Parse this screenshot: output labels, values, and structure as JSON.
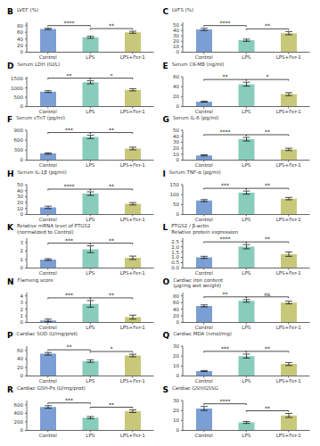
{
  "chart_data": [
    {
      "type": "bar",
      "title": "B",
      "y_label": "LVEF (%)",
      "categories": [
        "Control",
        "LPS",
        "LPS+Fer-1"
      ],
      "values": [
        70,
        45,
        60
      ],
      "errors": [
        2,
        3,
        3
      ],
      "colors": [
        "#7b9fd4",
        "#88ccbb",
        "#c8c87a"
      ],
      "ylim": [
        0,
        90
      ],
      "yticks": [
        0,
        20,
        40,
        60,
        80
      ],
      "annotations": [
        {
          "from": "Control",
          "to": "LPS",
          "text": "****"
        },
        {
          "from": "LPS",
          "to": "LPS+Fer-1",
          "text": "**"
        }
      ]
    },
    {
      "type": "bar",
      "title": "C",
      "y_label": "LVFS (%)",
      "categories": [
        "Control",
        "LPS",
        "LPS+Fer-1"
      ],
      "values": [
        42,
        22,
        35
      ],
      "errors": [
        2,
        2,
        3
      ],
      "colors": [
        "#7b9fd4",
        "#88ccbb",
        "#c8c87a"
      ],
      "ylim": [
        0,
        55
      ],
      "yticks": [
        0,
        10,
        20,
        30,
        40,
        50
      ],
      "annotations": [
        {
          "from": "Control",
          "to": "LPS",
          "text": "****"
        },
        {
          "from": "LPS",
          "to": "LPS+Fer-1",
          "text": "**"
        }
      ]
    },
    {
      "type": "bar",
      "title": "D",
      "y_label": "Serum LDH (IU/L)",
      "categories": [
        "Control",
        "LPS",
        "LPS+Fer-1"
      ],
      "values": [
        800,
        1300,
        900
      ],
      "errors": [
        50,
        80,
        60
      ],
      "colors": [
        "#7b9fd4",
        "#88ccbb",
        "#c8c87a"
      ],
      "ylim": [
        0,
        1600
      ],
      "yticks": [
        0,
        500,
        1000,
        1500
      ],
      "annotations": [
        {
          "from": "Control",
          "to": "LPS",
          "text": "**"
        },
        {
          "from": "LPS",
          "to": "LPS+Fer-1",
          "text": "*"
        }
      ]
    },
    {
      "type": "bar",
      "title": "E",
      "y_label": "Serum CK-MB (ng/ml)",
      "categories": [
        "Control",
        "LPS",
        "LPS+Fer-1"
      ],
      "values": [
        10,
        45,
        25
      ],
      "errors": [
        1,
        4,
        3
      ],
      "colors": [
        "#7b9fd4",
        "#88ccbb",
        "#c8c87a"
      ],
      "ylim": [
        0,
        60
      ],
      "yticks": [
        0,
        20,
        40,
        60
      ],
      "annotations": [
        {
          "from": "Control",
          "to": "LPS",
          "text": "**"
        },
        {
          "from": "LPS",
          "to": "LPS+Fer-1",
          "text": "*"
        }
      ]
    },
    {
      "type": "bar",
      "title": "F",
      "y_label": "Serum cTnT (pg/ml)",
      "categories": [
        "Control",
        "LPS",
        "LPS+Fer-1"
      ],
      "values": [
        200,
        700,
        350
      ],
      "errors": [
        20,
        50,
        40
      ],
      "colors": [
        "#7b9fd4",
        "#88ccbb",
        "#c8c87a"
      ],
      "ylim": [
        0,
        900
      ],
      "yticks": [
        0,
        300,
        600,
        900
      ],
      "annotations": [
        {
          "from": "Control",
          "to": "LPS",
          "text": "***"
        },
        {
          "from": "LPS",
          "to": "LPS+Fer-1",
          "text": "**"
        }
      ]
    },
    {
      "type": "bar",
      "title": "G",
      "y_label": "Serum IL-6 (pg/ml)",
      "categories": [
        "Control",
        "LPS",
        "LPS+Fer-1"
      ],
      "values": [
        8,
        35,
        18
      ],
      "errors": [
        1,
        3,
        2
      ],
      "colors": [
        "#7b9fd4",
        "#88ccbb",
        "#c8c87a"
      ],
      "ylim": [
        0,
        50
      ],
      "yticks": [
        0,
        10,
        20,
        30,
        40,
        50
      ],
      "annotations": [
        {
          "from": "Control",
          "to": "LPS",
          "text": "****"
        },
        {
          "from": "LPS",
          "to": "LPS+Fer-1",
          "text": "**"
        }
      ]
    },
    {
      "type": "bar",
      "title": "H",
      "y_label": "Serum IL-1β (pg/ml)",
      "categories": [
        "Control",
        "LPS",
        "LPS+Fer-1"
      ],
      "values": [
        12,
        35,
        18
      ],
      "errors": [
        2,
        3,
        2
      ],
      "colors": [
        "#7b9fd4",
        "#88ccbb",
        "#c8c87a"
      ],
      "ylim": [
        0,
        50
      ],
      "yticks": [
        0,
        10,
        20,
        30,
        40,
        50
      ],
      "annotations": [
        {
          "from": "Control",
          "to": "LPS",
          "text": "****"
        },
        {
          "from": "LPS",
          "to": "LPS+Fer-1",
          "text": "**"
        }
      ]
    },
    {
      "type": "bar",
      "title": "I",
      "y_label": "Serum TNF-α (pg/ml)",
      "categories": [
        "Control",
        "LPS",
        "LPS+Fer-1"
      ],
      "values": [
        70,
        110,
        80
      ],
      "errors": [
        5,
        8,
        6
      ],
      "colors": [
        "#7b9fd4",
        "#88ccbb",
        "#c8c87a"
      ],
      "ylim": [
        0,
        150
      ],
      "yticks": [
        0,
        50,
        100,
        150
      ],
      "annotations": [
        {
          "from": "Control",
          "to": "LPS",
          "text": "***"
        },
        {
          "from": "LPS",
          "to": "LPS+Fer-1",
          "text": "**"
        }
      ]
    },
    {
      "type": "bar",
      "title": "K",
      "y_label": "Relative mRNA level of PTGS2\n(normalized to Control)",
      "categories": [
        "Control",
        "LPS",
        "LPS+Fer-1"
      ],
      "values": [
        1.0,
        2.2,
        1.2
      ],
      "errors": [
        0.1,
        0.4,
        0.2
      ],
      "colors": [
        "#7b9fd4",
        "#88ccbb",
        "#c8c87a"
      ],
      "ylim": [
        0,
        3.5
      ],
      "yticks": [
        0,
        1,
        2,
        3
      ],
      "annotations": [
        {
          "from": "Control",
          "to": "LPS",
          "text": "***"
        },
        {
          "from": "LPS",
          "to": "LPS+Fer-1",
          "text": "**"
        }
      ]
    },
    {
      "type": "bar",
      "title": "L",
      "y_label": "PTGS2 / β-actin\nRelative protein expression",
      "categories": [
        "Control",
        "LPS",
        "LPS+Fer-1"
      ],
      "values": [
        1.0,
        2.0,
        1.3
      ],
      "errors": [
        0.1,
        0.2,
        0.2
      ],
      "colors": [
        "#7b9fd4",
        "#88ccbb",
        "#c8c87a"
      ],
      "ylim": [
        0,
        2.8
      ],
      "yticks": [
        {
          "value": 0,
          "label": "0.0"
        },
        0.5,
        {
          "value": 1.0,
          "label": "1.0"
        },
        1.5,
        {
          "value": 2.0,
          "label": "2.0"
        },
        2.5
      ],
      "annotations": [
        {
          "from": "Control",
          "to": "LPS",
          "text": "****"
        },
        {
          "from": "LPS",
          "to": "LPS+Fer-1",
          "text": "**"
        }
      ]
    },
    {
      "type": "bar",
      "title": "N",
      "y_label": "Flameng score",
      "categories": [
        "Control",
        "LPS",
        "LPS+Fer-1"
      ],
      "values": [
        0.3,
        2.8,
        0.8
      ],
      "errors": [
        0.2,
        0.5,
        0.3
      ],
      "colors": [
        "#7b9fd4",
        "#88ccbb",
        "#c8c87a"
      ],
      "ylim": [
        0,
        4.5
      ],
      "yticks": [
        0,
        1,
        2,
        3,
        4
      ],
      "annotations": [
        {
          "from": "Control",
          "to": "LPS",
          "text": "***"
        },
        {
          "from": "LPS",
          "to": "LPS+Fer-1",
          "text": "**"
        }
      ]
    },
    {
      "type": "bar",
      "title": "O",
      "y_label": "Cardiac iron content\n(μg/mg wet weight)",
      "categories": [
        "Control",
        "LPS",
        "LPS+Fer-1"
      ],
      "values": [
        50,
        65,
        60
      ],
      "errors": [
        3,
        4,
        4
      ],
      "colors": [
        "#7b9fd4",
        "#88ccbb",
        "#c8c87a"
      ],
      "ylim": [
        0,
        90
      ],
      "yticks": [
        0,
        20,
        40,
        60,
        80
      ],
      "annotations": [
        {
          "from": "Control",
          "to": "LPS",
          "text": "**"
        },
        {
          "from": "LPS",
          "to": "LPS+Fer-1",
          "text": "ns"
        }
      ]
    },
    {
      "type": "bar",
      "title": "P",
      "y_label": "Cardiac SOD (U/mg/prot)",
      "categories": [
        "Control",
        "LPS",
        "LPS+Fer-1"
      ],
      "values": [
        52,
        35,
        48
      ],
      "errors": [
        3,
        3,
        3
      ],
      "colors": [
        "#7b9fd4",
        "#88ccbb",
        "#c8c87a"
      ],
      "ylim": [
        0,
        70
      ],
      "yticks": [
        0,
        20,
        40,
        60
      ],
      "annotations": [
        {
          "from": "Control",
          "to": "LPS",
          "text": "**"
        },
        {
          "from": "LPS",
          "to": "LPS+Fer-1",
          "text": "*"
        }
      ]
    },
    {
      "type": "bar",
      "title": "Q",
      "y_label": "Cardiac MDA (nmol/mg)",
      "categories": [
        "Control",
        "LPS",
        "LPS+Fer-1"
      ],
      "values": [
        5,
        20,
        12
      ],
      "errors": [
        0.5,
        2,
        1.5
      ],
      "colors": [
        "#7b9fd4",
        "#88ccbb",
        "#c8c87a"
      ],
      "ylim": [
        0,
        30
      ],
      "yticks": [
        0,
        10,
        20,
        30
      ],
      "annotations": [
        {
          "from": "Control",
          "to": "LPS",
          "text": "***"
        },
        {
          "from": "LPS",
          "to": "LPS+Fer-1",
          "text": "**"
        }
      ]
    },
    {
      "type": "bar",
      "title": "R",
      "y_label": "Cardiac GSH-Px (U/mg/prot)",
      "categories": [
        "Control",
        "LPS",
        "LPS+Fer-1"
      ],
      "values": [
        550,
        300,
        450
      ],
      "errors": [
        30,
        25,
        30
      ],
      "colors": [
        "#7b9fd4",
        "#88ccbb",
        "#c8c87a"
      ],
      "ylim": [
        0,
        700
      ],
      "yticks": [
        0,
        200,
        400,
        600
      ],
      "annotations": [
        {
          "from": "Control",
          "to": "LPS",
          "text": "***"
        },
        {
          "from": "LPS",
          "to": "LPS+Fer-1",
          "text": "**"
        }
      ]
    },
    {
      "type": "bar",
      "title": "S",
      "y_label": "Cardiac GSH/GSSG",
      "categories": [
        "Control",
        "LPS",
        "LPS+Fer-1"
      ],
      "values": [
        22,
        8,
        15
      ],
      "errors": [
        2,
        1,
        2
      ],
      "colors": [
        "#7b9fd4",
        "#88ccbb",
        "#c8c87a"
      ],
      "ylim": [
        0,
        30
      ],
      "yticks": [
        0,
        10,
        20,
        30
      ],
      "annotations": [
        {
          "from": "Control",
          "to": "LPS",
          "text": "****"
        },
        {
          "from": "LPS",
          "to": "LPS+Fer-1",
          "text": "**"
        }
      ]
    }
  ]
}
